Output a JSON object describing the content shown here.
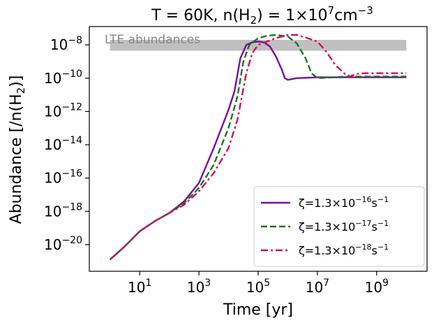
{
  "chart_data": {
    "type": "line",
    "title": {
      "pre": "T = 60K, n(H",
      "sub": "2",
      "mid": ") = 1×10",
      "exp": "7",
      "unit": "cm",
      "unit_exp": "−3"
    },
    "xlabel": "Time [yr]",
    "ylabel": {
      "pre": "Abundance [/n(H",
      "sub": "2",
      "post": ")]"
    },
    "x_scale": "log",
    "y_scale": "log",
    "xlim_log10": [
      -0.7,
      10.7
    ],
    "ylim_log10": [
      -21.6,
      -6.9
    ],
    "x_ticks": [
      {
        "base": "10",
        "exp": "1",
        "log": 1
      },
      {
        "base": "10",
        "exp": "3",
        "log": 3
      },
      {
        "base": "10",
        "exp": "5",
        "log": 5
      },
      {
        "base": "10",
        "exp": "7",
        "log": 7
      },
      {
        "base": "10",
        "exp": "9",
        "log": 9
      }
    ],
    "y_ticks": [
      {
        "base": "10",
        "exp": "−20",
        "log": -20
      },
      {
        "base": "10",
        "exp": "−18",
        "log": -18
      },
      {
        "base": "10",
        "exp": "−16",
        "log": -16
      },
      {
        "base": "10",
        "exp": "−14",
        "log": -14
      },
      {
        "base": "10",
        "exp": "−12",
        "log": -12
      },
      {
        "base": "10",
        "exp": "−10",
        "log": -10
      },
      {
        "base": "10",
        "exp": "−8",
        "log": -8
      }
    ],
    "lte_band": {
      "label": "LTE abundances",
      "x_log10": [
        0,
        10
      ],
      "y_log10": [
        -8.35,
        -7.7
      ],
      "color": "#bfbfbf"
    },
    "grid": false,
    "legend_position": "lower-right",
    "series": [
      {
        "legend": {
          "pre": "ζ=1.3×10",
          "exp": "−16",
          "unit": "s",
          "unit_exp": "−1"
        },
        "color": "#7b0ba3",
        "dash": "solid",
        "points": [
          [
            0,
            -20.9
          ],
          [
            0.5,
            -20.1
          ],
          [
            1,
            -19.2
          ],
          [
            1.5,
            -18.6
          ],
          [
            2,
            -18.1
          ],
          [
            2.5,
            -17.4
          ],
          [
            3,
            -16.3
          ],
          [
            3.5,
            -14.2
          ],
          [
            4,
            -11.9
          ],
          [
            4.2,
            -10.8
          ],
          [
            4.4,
            -8.8
          ],
          [
            4.6,
            -8.0
          ],
          [
            4.8,
            -7.85
          ],
          [
            5,
            -7.8
          ],
          [
            5.2,
            -7.85
          ],
          [
            5.4,
            -8.1
          ],
          [
            5.6,
            -8.7
          ],
          [
            5.8,
            -9.5
          ],
          [
            5.9,
            -10.0
          ],
          [
            6,
            -10.1
          ],
          [
            6.3,
            -10.0
          ],
          [
            7,
            -9.95
          ],
          [
            8,
            -9.95
          ],
          [
            9,
            -9.95
          ],
          [
            10,
            -9.95
          ]
        ]
      },
      {
        "legend": {
          "pre": "ζ=1.3×10",
          "exp": "−17",
          "unit": "s",
          "unit_exp": "−1"
        },
        "color": "#147814",
        "dash": "dashed",
        "points": [
          [
            0,
            -20.9
          ],
          [
            0.5,
            -20.1
          ],
          [
            1,
            -19.2
          ],
          [
            1.5,
            -18.6
          ],
          [
            2,
            -18.1
          ],
          [
            2.5,
            -17.5
          ],
          [
            3,
            -16.6
          ],
          [
            3.5,
            -15.2
          ],
          [
            4,
            -13.0
          ],
          [
            4.3,
            -11.1
          ],
          [
            4.5,
            -9.0
          ],
          [
            4.7,
            -8.0
          ],
          [
            5,
            -7.6
          ],
          [
            5.3,
            -7.45
          ],
          [
            5.6,
            -7.4
          ],
          [
            6,
            -7.5
          ],
          [
            6.3,
            -7.9
          ],
          [
            6.6,
            -8.8
          ],
          [
            6.8,
            -9.7
          ],
          [
            7,
            -10.0
          ],
          [
            7.5,
            -9.95
          ],
          [
            8,
            -9.9
          ],
          [
            9,
            -9.9
          ],
          [
            10,
            -9.9
          ]
        ]
      },
      {
        "legend": {
          "pre": "ζ=1.3×10",
          "exp": "−18",
          "unit": "s",
          "unit_exp": "−1"
        },
        "color": "#d10e55",
        "dash": "dashdot",
        "points": [
          [
            0,
            -20.9
          ],
          [
            0.5,
            -20.1
          ],
          [
            1,
            -19.2
          ],
          [
            1.5,
            -18.6
          ],
          [
            2,
            -18.1
          ],
          [
            2.5,
            -17.6
          ],
          [
            3,
            -16.8
          ],
          [
            3.5,
            -15.7
          ],
          [
            4,
            -14.2
          ],
          [
            4.3,
            -12.5
          ],
          [
            4.6,
            -9.7
          ],
          [
            4.8,
            -8.5
          ],
          [
            5,
            -8.0
          ],
          [
            5.3,
            -7.8
          ],
          [
            5.6,
            -7.6
          ],
          [
            6,
            -7.4
          ],
          [
            6.3,
            -7.4
          ],
          [
            6.6,
            -7.55
          ],
          [
            7,
            -7.8
          ],
          [
            7.3,
            -8.4
          ],
          [
            7.6,
            -9.2
          ],
          [
            7.9,
            -9.7
          ],
          [
            8.1,
            -9.9
          ],
          [
            8.3,
            -9.75
          ],
          [
            8.6,
            -9.7
          ],
          [
            9,
            -9.7
          ],
          [
            10,
            -9.7
          ]
        ]
      }
    ]
  }
}
